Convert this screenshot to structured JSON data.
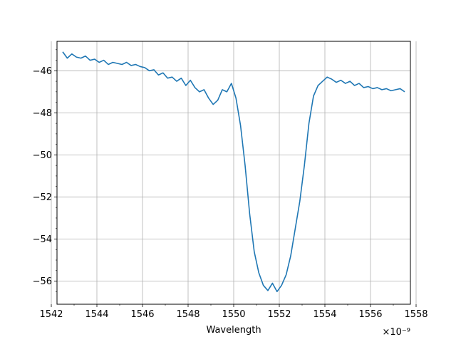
{
  "chart_data": {
    "type": "line",
    "xlabel": "Wavelength",
    "ylabel": "",
    "title": "",
    "x_multiplier_label": "×10⁻⁹",
    "x_unit_scale": 1e-09,
    "xlim": [
      1542.25,
      1557.75
    ],
    "ylim": [
      -57.1,
      -44.6
    ],
    "xticks": [
      1542,
      1544,
      1546,
      1548,
      1550,
      1552,
      1554,
      1556,
      1558
    ],
    "yticks": [
      -56,
      -54,
      -52,
      -50,
      -48,
      -46
    ],
    "grid": true,
    "line_color": "#1f77b4",
    "series": [
      {
        "x": [
          1542.5,
          1542.7,
          1542.9,
          1543.1,
          1543.3,
          1543.5,
          1543.7,
          1543.9,
          1544.1,
          1544.3,
          1544.5,
          1544.7,
          1544.9,
          1545.1,
          1545.3,
          1545.5,
          1545.7,
          1545.9,
          1546.1,
          1546.3,
          1546.5,
          1546.7,
          1546.9,
          1547.1,
          1547.3,
          1547.5,
          1547.7,
          1547.9,
          1548.1,
          1548.3,
          1548.5,
          1548.7,
          1548.9,
          1549.1,
          1549.3,
          1549.5,
          1549.7,
          1549.9,
          1550.1,
          1550.3,
          1550.5,
          1550.7,
          1550.9,
          1551.1,
          1551.3,
          1551.5,
          1551.7,
          1551.9,
          1552.1,
          1552.3,
          1552.5,
          1552.7,
          1552.9,
          1553.1,
          1553.3,
          1553.5,
          1553.7,
          1553.9,
          1554.1,
          1554.3,
          1554.5,
          1554.7,
          1554.9,
          1555.1,
          1555.3,
          1555.5,
          1555.7,
          1555.9,
          1556.1,
          1556.3,
          1556.5,
          1556.7,
          1556.9,
          1557.1,
          1557.3,
          1557.5
        ],
        "y": [
          -45.1,
          -45.4,
          -45.2,
          -45.35,
          -45.4,
          -45.3,
          -45.5,
          -45.45,
          -45.6,
          -45.5,
          -45.7,
          -45.6,
          -45.65,
          -45.7,
          -45.6,
          -45.75,
          -45.7,
          -45.8,
          -45.85,
          -46.0,
          -45.95,
          -46.2,
          -46.1,
          -46.35,
          -46.3,
          -46.5,
          -46.35,
          -46.7,
          -46.45,
          -46.8,
          -47.0,
          -46.9,
          -47.3,
          -47.6,
          -47.4,
          -46.9,
          -47.0,
          -46.6,
          -47.3,
          -48.6,
          -50.5,
          -52.8,
          -54.6,
          -55.6,
          -56.2,
          -56.45,
          -56.1,
          -56.5,
          -56.2,
          -55.7,
          -54.8,
          -53.5,
          -52.2,
          -50.5,
          -48.5,
          -47.2,
          -46.7,
          -46.5,
          -46.3,
          -46.4,
          -46.55,
          -46.45,
          -46.6,
          -46.5,
          -46.7,
          -46.6,
          -46.8,
          -46.75,
          -46.85,
          -46.8,
          -46.9,
          -46.85,
          -46.95,
          -46.9,
          -46.85,
          -47.0
        ]
      }
    ]
  }
}
